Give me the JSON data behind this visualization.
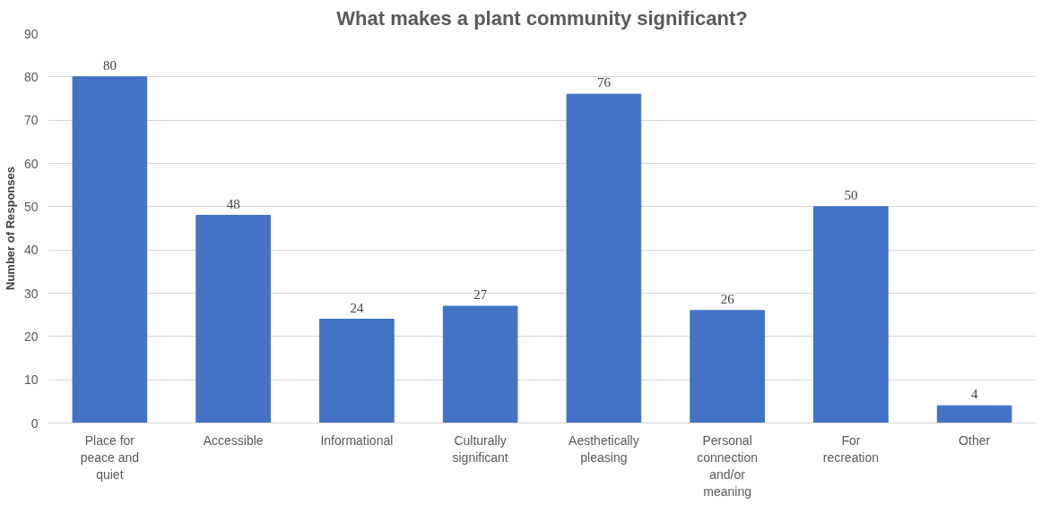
{
  "chart_data": {
    "type": "bar",
    "title": "What makes a plant community significant?",
    "ylabel": "Number of Responses",
    "categories": [
      "Place for peace and quiet",
      "Accessible",
      "Informational",
      "Culturally significant",
      "Aesthetically pleasing",
      "Personal connection and/or meaning",
      "For recreation",
      "Other"
    ],
    "values": [
      80,
      48,
      24,
      27,
      76,
      26,
      50,
      4
    ],
    "color": "#4472c4",
    "data_labels": true,
    "ylim": [
      0,
      90
    ],
    "yticks": [
      0,
      10,
      20,
      30,
      40,
      50,
      60,
      70,
      80,
      90
    ],
    "grid": "y"
  }
}
